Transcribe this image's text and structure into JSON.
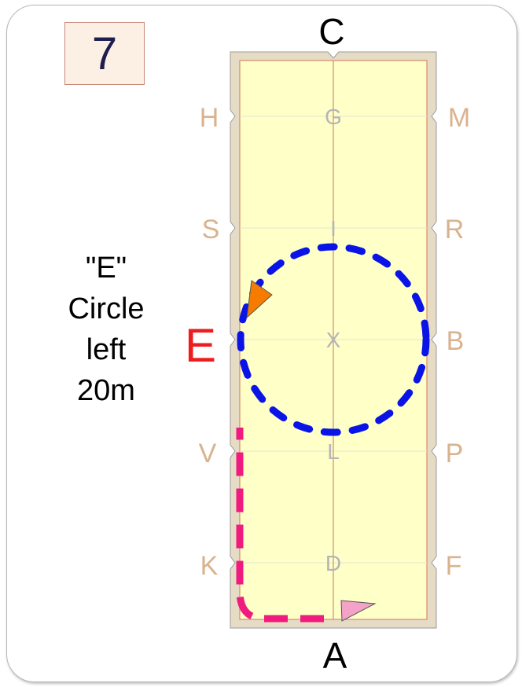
{
  "card": {
    "number": "7",
    "description_lines": [
      "\"E\"",
      "Circle",
      "left",
      "20m"
    ]
  },
  "arena": {
    "top_letter": "C",
    "bottom_letter": "A",
    "left_letters": [
      "H",
      "S",
      "E",
      "V",
      "K"
    ],
    "right_letters": [
      "M",
      "R",
      "B",
      "P",
      "F"
    ],
    "center_letters": [
      "G",
      "I",
      "X",
      "L",
      "D"
    ],
    "highlighted_letter": "E"
  },
  "colors": {
    "circle_path": "#0a14e6",
    "approach_path": "#f01b7e",
    "start_arrow": "#f4a3c8",
    "end_arrow": "#f57c00",
    "arena_fill": "#ffffc8",
    "arena_border": "#e6dcc6",
    "highlight": "#ee1c1c"
  }
}
